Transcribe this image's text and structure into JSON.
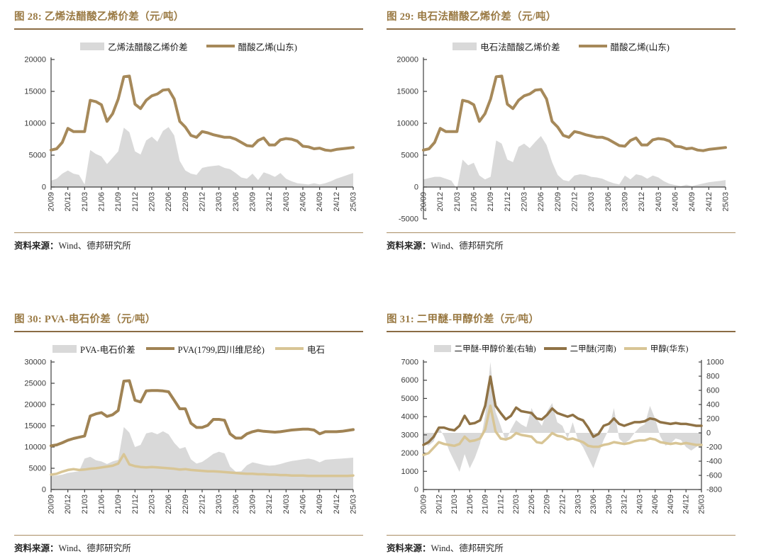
{
  "page": {
    "background": "#ffffff"
  },
  "colors": {
    "title_brown": "#9a7a44",
    "title_rule": "#8b6c44",
    "source_rule": "#aa8d63",
    "axis": "#3f3f3f",
    "gray_area": "#d9d9d9",
    "brown_line": "#a6895a",
    "dark_brown_line": "#8f7245",
    "tan_line": "#d8c595"
  },
  "source_note": {
    "prefix": "资料来源：",
    "body": "Wind、德邦研究所"
  },
  "chart_data": [
    {
      "figure_label": "图 28",
      "title": "图 28: 乙烯法醋酸乙烯价差（元/吨）",
      "type": "area+line",
      "grid": false,
      "legend_position": "top",
      "x_points": 55,
      "x_start": "2020/09",
      "x_end": "2025/03",
      "x_tick_labels": [
        "20/09",
        "20/12",
        "21/03",
        "21/06",
        "21/09",
        "21/12",
        "22/03",
        "22/06",
        "22/09",
        "22/12",
        "23/03",
        "23/06",
        "23/09",
        "23/12",
        "24/03",
        "24/06",
        "24/09",
        "24/12",
        "25/03"
      ],
      "y_axis": {
        "min": 0,
        "max": 20000,
        "step": 5000
      },
      "x_axis_cross_at": 0,
      "series": [
        {
          "name": "乙烯法醋酸乙烯价差",
          "type": "area",
          "axis": "y",
          "color": "#d9d9d9",
          "baseline": 0,
          "values": [
            1000,
            1300,
            2100,
            2600,
            2100,
            1900,
            400,
            5800,
            5200,
            4800,
            3600,
            4600,
            5600,
            9300,
            8600,
            5600,
            5100,
            7300,
            7900,
            7100,
            8800,
            9400,
            8100,
            4100,
            2600,
            2100,
            1900,
            3000,
            3200,
            3300,
            3400,
            3000,
            2800,
            2200,
            1500,
            1300,
            2100,
            1100,
            2300,
            2000,
            1600,
            2200,
            1300,
            900,
            600,
            500,
            400,
            600,
            400,
            600,
            900,
            1300,
            1600,
            1900,
            2200
          ]
        },
        {
          "name": "醋酸乙烯(山东)",
          "type": "line",
          "axis": "y",
          "color": "#a6895a",
          "width": 4,
          "values": [
            5800,
            6000,
            7000,
            9200,
            8700,
            8700,
            8700,
            13600,
            13400,
            12900,
            10300,
            11500,
            13800,
            17300,
            17400,
            13000,
            12300,
            13600,
            14300,
            14600,
            15200,
            15300,
            13800,
            10300,
            9400,
            8100,
            7800,
            8700,
            8500,
            8200,
            8000,
            7800,
            7800,
            7500,
            7000,
            6500,
            6400,
            7300,
            7700,
            6600,
            6600,
            7400,
            7600,
            7500,
            7200,
            6400,
            6300,
            6000,
            6100,
            5800,
            5700,
            5900,
            6000,
            6100,
            6200
          ]
        }
      ],
      "source": "资料来源：Wind、德邦研究所"
    },
    {
      "figure_label": "图 29",
      "title": "图 29: 电石法醋酸乙烯价差（元/吨）",
      "type": "area+line",
      "grid": false,
      "legend_position": "top",
      "x_points": 55,
      "x_start": "2020/09",
      "x_end": "2025/03",
      "x_tick_labels": [
        "20/09",
        "20/12",
        "21/03",
        "21/06",
        "21/09",
        "21/12",
        "22/03",
        "22/06",
        "22/09",
        "22/12",
        "23/03",
        "23/06",
        "23/09",
        "23/12",
        "24/03",
        "24/06",
        "24/09",
        "24/12",
        "25/03"
      ],
      "y_axis": {
        "min": -5000,
        "max": 20000,
        "step": 5000
      },
      "x_axis_cross_at": 0,
      "series": [
        {
          "name": "电石法醋酸乙烯价差",
          "type": "area",
          "axis": "y",
          "color": "#d9d9d9",
          "baseline": 0,
          "values": [
            1200,
            1400,
            1600,
            1600,
            1300,
            1000,
            -300,
            4300,
            3400,
            3800,
            1800,
            1200,
            1600,
            7300,
            6800,
            4300,
            3900,
            6300,
            6800,
            6100,
            7100,
            8000,
            6600,
            3900,
            1900,
            1100,
            900,
            1800,
            2000,
            1900,
            1600,
            1500,
            1300,
            900,
            600,
            400,
            1800,
            1200,
            2000,
            1800,
            1300,
            1800,
            1500,
            900,
            500,
            300,
            150,
            350,
            150,
            350,
            550,
            750,
            850,
            950,
            1100
          ]
        },
        {
          "name": "醋酸乙烯(山东)",
          "type": "line",
          "axis": "y",
          "color": "#a6895a",
          "width": 4,
          "values": [
            5800,
            6000,
            7000,
            9200,
            8700,
            8700,
            8700,
            13600,
            13400,
            12900,
            10300,
            11500,
            13800,
            17300,
            17400,
            13000,
            12300,
            13600,
            14300,
            14600,
            15200,
            15300,
            13800,
            10300,
            9400,
            8100,
            7800,
            8700,
            8500,
            8200,
            8000,
            7800,
            7800,
            7500,
            7000,
            6500,
            6400,
            7300,
            7700,
            6600,
            6600,
            7400,
            7600,
            7500,
            7200,
            6400,
            6300,
            6000,
            6100,
            5800,
            5700,
            5900,
            6000,
            6100,
            6200
          ]
        }
      ],
      "source": "资料来源：Wind、德邦研究所"
    },
    {
      "figure_label": "图 30",
      "title": "图 30: PVA-电石价差（元/吨）",
      "type": "area+line",
      "grid": false,
      "legend_position": "top",
      "x_points": 55,
      "x_start": "2020/09",
      "x_end": "2025/03",
      "x_tick_labels": [
        "20/09",
        "20/12",
        "21/03",
        "21/06",
        "21/09",
        "21/12",
        "22/03",
        "22/06",
        "22/09",
        "22/12",
        "23/03",
        "23/06",
        "23/09",
        "23/12",
        "24/03",
        "24/06",
        "24/09",
        "24/12",
        "25/03"
      ],
      "y_axis": {
        "min": 0,
        "max": 30000,
        "step": 5000
      },
      "x_axis_cross_at": 0,
      "series": [
        {
          "name": "PVA-电石价差",
          "type": "area",
          "axis": "y",
          "color": "#d9d9d9",
          "baseline": 0,
          "values": [
            3200,
            3300,
            3500,
            3900,
            4100,
            4300,
            7300,
            7700,
            6900,
            6600,
            6000,
            6600,
            7000,
            14700,
            13400,
            10000,
            10500,
            13200,
            13500,
            13000,
            13700,
            13000,
            11000,
            9600,
            10000,
            7100,
            6100,
            6500,
            7400,
            8400,
            8900,
            8500,
            5400,
            4200,
            4300,
            5700,
            6400,
            6100,
            5800,
            5600,
            5700,
            6000,
            6400,
            6700,
            6900,
            7100,
            7300,
            7000,
            6400,
            7000,
            7100,
            7200,
            7300,
            7400,
            7500
          ]
        },
        {
          "name": "PVA(1799,四川维尼纶)",
          "type": "line",
          "axis": "y",
          "color": "#a08354",
          "width": 4,
          "values": [
            10300,
            10500,
            11000,
            11600,
            12000,
            12300,
            12600,
            17300,
            17800,
            18100,
            17200,
            17600,
            18600,
            25500,
            25600,
            21000,
            20600,
            23200,
            23300,
            23300,
            23200,
            23000,
            21000,
            19000,
            19000,
            15600,
            14600,
            14600,
            15100,
            16500,
            16500,
            16300,
            13100,
            12100,
            12100,
            13100,
            13600,
            13900,
            13700,
            13600,
            13500,
            13600,
            13800,
            14000,
            14100,
            14200,
            14200,
            14000,
            13100,
            13600,
            13600,
            13600,
            13700,
            13900,
            14100
          ]
        },
        {
          "name": "电石",
          "type": "line",
          "axis": "y",
          "color": "#d8c595",
          "width": 3.5,
          "values": [
            3500,
            3700,
            4200,
            4600,
            4800,
            4600,
            4700,
            4900,
            5000,
            5200,
            5400,
            5600,
            6100,
            8300,
            5900,
            5500,
            5300,
            5200,
            5300,
            5200,
            5100,
            5000,
            4900,
            4700,
            4800,
            4600,
            4500,
            4400,
            4300,
            4300,
            4200,
            4100,
            4000,
            3900,
            3800,
            3700,
            3700,
            3600,
            3600,
            3500,
            3500,
            3400,
            3400,
            3300,
            3300,
            3300,
            3200,
            3200,
            3200,
            3200,
            3200,
            3200,
            3200,
            3200,
            3300
          ]
        }
      ],
      "source": "资料来源：Wind、德邦研究所"
    },
    {
      "figure_label": "图 31",
      "title": "图 31: 二甲醚-甲醇价差（元/吨）",
      "type": "area+line",
      "grid": false,
      "legend_position": "top",
      "x_points": 55,
      "x_start": "2020/09",
      "x_end": "2025/03",
      "x_tick_labels": [
        "20/09",
        "20/12",
        "21/03",
        "21/06",
        "21/09",
        "21/12",
        "22/03",
        "22/06",
        "22/09",
        "22/12",
        "23/03",
        "23/06",
        "23/09",
        "23/12",
        "24/03",
        "24/06",
        "24/09",
        "24/12",
        "25/03"
      ],
      "y_axis": {
        "min": 0,
        "max": 7000,
        "step": 1000
      },
      "y2_axis": {
        "min": -800,
        "max": 1000,
        "step": 200
      },
      "x_axis_cross_at": 0,
      "series": [
        {
          "name": "二甲醚-甲醇价差(右轴)",
          "type": "area",
          "axis": "y2",
          "color": "#d9d9d9",
          "baseline": 0,
          "values": [
            -150,
            -180,
            -120,
            80,
            -50,
            -250,
            -400,
            -550,
            -300,
            -500,
            -350,
            -150,
            250,
            1000,
            300,
            100,
            -120,
            50,
            180,
            120,
            80,
            350,
            200,
            100,
            300,
            420,
            150,
            100,
            -80,
            150,
            -100,
            -200,
            -350,
            -500,
            -300,
            -100,
            50,
            350,
            -80,
            -150,
            -100,
            0,
            80,
            120,
            380,
            200,
            -50,
            -180,
            -150,
            -80,
            -100,
            -200,
            -250,
            -200,
            -150
          ]
        },
        {
          "name": "二甲醚(河南)",
          "type": "line",
          "axis": "y",
          "color": "#8f7245",
          "width": 3.5,
          "values": [
            2450,
            2600,
            2900,
            3400,
            3400,
            3300,
            3250,
            3500,
            4050,
            3600,
            3650,
            3800,
            4600,
            6200,
            4600,
            4200,
            3850,
            4050,
            4500,
            4300,
            4250,
            4200,
            3900,
            3850,
            4100,
            4450,
            4200,
            4100,
            4000,
            4100,
            3900,
            3800,
            3400,
            2900,
            3050,
            3500,
            3600,
            3900,
            3600,
            3500,
            3600,
            3700,
            3700,
            3750,
            3900,
            3850,
            3700,
            3650,
            3600,
            3650,
            3600,
            3600,
            3550,
            3500,
            3500
          ]
        },
        {
          "name": "甲醇(华东)",
          "type": "line",
          "axis": "y",
          "color": "#d8c595",
          "width": 3.5,
          "values": [
            1900,
            2000,
            2300,
            2600,
            2500,
            2450,
            2400,
            2500,
            2900,
            2650,
            2700,
            2800,
            3300,
            4600,
            3200,
            2800,
            2750,
            2850,
            3100,
            3000,
            2950,
            2900,
            2600,
            2550,
            2800,
            3100,
            2950,
            2900,
            2750,
            2800,
            2700,
            2600,
            2400,
            2350,
            2350,
            2450,
            2500,
            2600,
            2550,
            2500,
            2550,
            2650,
            2700,
            2700,
            2800,
            2750,
            2600,
            2550,
            2500,
            2550,
            2500,
            2550,
            2500,
            2450,
            2450
          ]
        }
      ],
      "source": "资料来源：Wind、德邦研究所"
    }
  ]
}
